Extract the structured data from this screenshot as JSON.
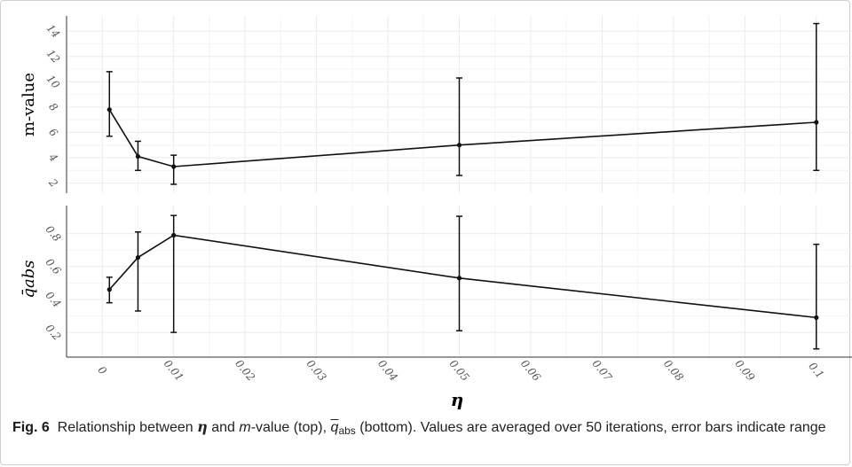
{
  "chart_data": [
    {
      "type": "line",
      "panel": "top",
      "ylabel": "m-value",
      "xlabel": "",
      "x": [
        0.001,
        0.005,
        0.01,
        0.05,
        0.1
      ],
      "y": [
        7.8,
        4.1,
        3.3,
        5.0,
        6.8
      ],
      "y_min": [
        5.7,
        3.0,
        1.9,
        2.6,
        3.0
      ],
      "y_max": [
        10.8,
        5.3,
        4.2,
        10.3,
        14.6
      ],
      "ylim": [
        1.2,
        15.2
      ],
      "yticks": [
        "2",
        "4",
        "6",
        "8",
        "10",
        "12",
        "14"
      ],
      "ytick_values": [
        2,
        4,
        6,
        8,
        10,
        12,
        14
      ],
      "grid": true
    },
    {
      "type": "line",
      "panel": "bottom",
      "ylabel": "q̄abs",
      "xlabel": "η",
      "x": [
        0.001,
        0.005,
        0.01,
        0.05,
        0.1
      ],
      "y": [
        0.46,
        0.655,
        0.79,
        0.53,
        0.29
      ],
      "y_min": [
        0.38,
        0.33,
        0.2,
        0.21,
        0.1
      ],
      "y_max": [
        0.535,
        0.81,
        0.91,
        0.905,
        0.735
      ],
      "ylim": [
        0.05,
        0.97
      ],
      "yticks": [
        "0.2",
        "0.4",
        "0.6",
        "0.8"
      ],
      "ytick_values": [
        0.2,
        0.4,
        0.6,
        0.8
      ],
      "xticks": [
        "0",
        "0.01",
        "0.02",
        "0.03",
        "0.04",
        "0.05",
        "0.06",
        "0.07",
        "0.08",
        "0.09",
        "0.1"
      ],
      "xtick_values": [
        0,
        0.01,
        0.02,
        0.03,
        0.04,
        0.05,
        0.06,
        0.07,
        0.08,
        0.09,
        0.1
      ],
      "xlim": [
        -0.005,
        0.105
      ],
      "grid": true
    }
  ],
  "caption": {
    "label": "Fig. 6",
    "part1": "Relationship between",
    "eta": "η",
    "part2": "and",
    "m": "m",
    "part3": "-value (top),",
    "q": "q",
    "qsub": "abs",
    "part4": "(bottom). Values are averaged over 50 iterations, error bars indicate range"
  }
}
